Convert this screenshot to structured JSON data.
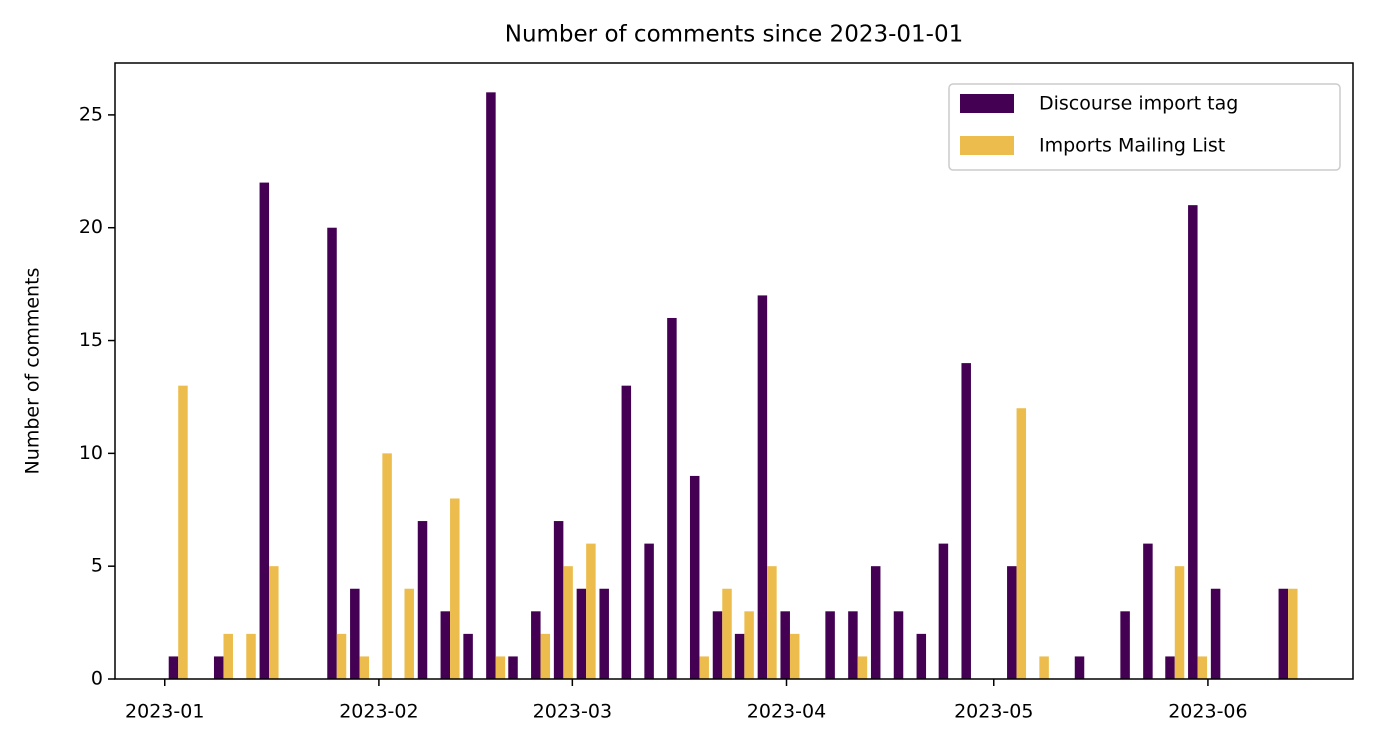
{
  "chart_data": {
    "type": "bar",
    "title": "Number of comments since 2023-01-01",
    "y_label": "Number of comments",
    "x": [
      1.95,
      5.2,
      8.5,
      11.8,
      15.1,
      18.4,
      21.6,
      24.9,
      28.2,
      31.5,
      34.7,
      38.0,
      41.3,
      44.6,
      47.9,
      51.1,
      54.4,
      57.7,
      61.0,
      64.3,
      67.5,
      70.8,
      74.1,
      77.4,
      80.7,
      83.9,
      87.2,
      90.5,
      93.8,
      97.0,
      100.3,
      103.6,
      106.9,
      110.2,
      113.4,
      116.7,
      120.0,
      123.3,
      126.6,
      129.8,
      133.1,
      136.4,
      139.7,
      143.0,
      146.2,
      149.5,
      152.8,
      156.1,
      159.3,
      162.6
    ],
    "series": [
      {
        "name": "Discourse import tag",
        "color": "#440154",
        "values": [
          1,
          0,
          1,
          0,
          22,
          0,
          0,
          20,
          4,
          0,
          0,
          7,
          3,
          2,
          26,
          1,
          3,
          7,
          4,
          4,
          13,
          6,
          16,
          9,
          3,
          2,
          17,
          3,
          0,
          3,
          3,
          5,
          3,
          2,
          6,
          14,
          0,
          5,
          0,
          0,
          1,
          0,
          3,
          6,
          1,
          21,
          4,
          0,
          0,
          4
        ]
      },
      {
        "name": "Imports Mailing List",
        "color": "#ecbd4d",
        "values": [
          13,
          0,
          2,
          2,
          5,
          0,
          0,
          2,
          1,
          10,
          4,
          0,
          8,
          0,
          1,
          0,
          2,
          5,
          6,
          0,
          0,
          0,
          0,
          1,
          4,
          3,
          5,
          2,
          0,
          0,
          1,
          0,
          0,
          0,
          0,
          0,
          0,
          12,
          1,
          0,
          0,
          0,
          0,
          0,
          5,
          1,
          0,
          0,
          0,
          4
        ]
      }
    ],
    "xlim": [
      -7.2,
      172.0
    ],
    "xticks": [
      {
        "value": 0,
        "label": "2023-01"
      },
      {
        "value": 31,
        "label": "2023-02"
      },
      {
        "value": 59,
        "label": "2023-03"
      },
      {
        "value": 90,
        "label": "2023-04"
      },
      {
        "value": 120,
        "label": "2023-05"
      },
      {
        "value": 151,
        "label": "2023-06"
      }
    ],
    "ylim": [
      0,
      27.3
    ],
    "yticks": [
      0,
      5,
      10,
      15,
      20,
      25
    ],
    "grid": false,
    "legend": "upper right"
  }
}
